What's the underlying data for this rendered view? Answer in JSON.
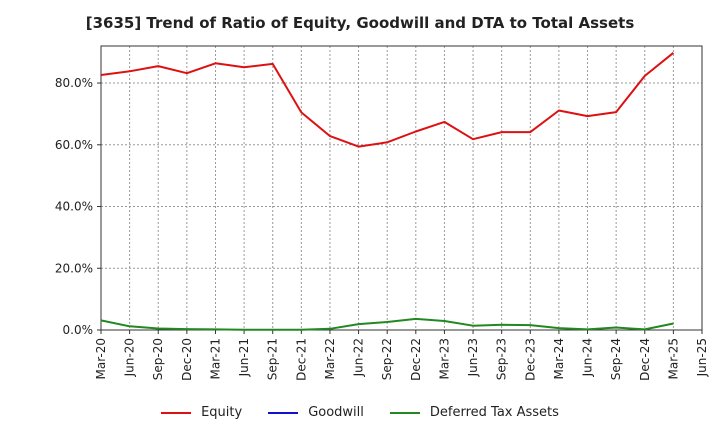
{
  "chart_data": {
    "type": "line",
    "title": "[3635]  Trend of Ratio of Equity, Goodwill and DTA to Total Assets",
    "xlabel": "",
    "ylabel": "",
    "ylim": [
      0,
      92
    ],
    "yticks": [
      0,
      20,
      40,
      60,
      80
    ],
    "ytick_labels": [
      "0.0%",
      "20.0%",
      "40.0%",
      "60.0%",
      "80.0%"
    ],
    "x_tick_labels": [
      "Mar-20",
      "Jun-20",
      "Sep-20",
      "Dec-20",
      "Mar-21",
      "Jun-21",
      "Sep-21",
      "Dec-21",
      "Mar-22",
      "Jun-22",
      "Sep-22",
      "Dec-22",
      "Mar-23",
      "Jun-23",
      "Sep-23",
      "Dec-23",
      "Mar-24",
      "Jun-24",
      "Sep-24",
      "Dec-24",
      "Mar-25",
      "Jun-25"
    ],
    "x": [
      "Mar-20",
      "Jun-20",
      "Sep-20",
      "Dec-20",
      "Mar-21",
      "Jun-21",
      "Sep-21",
      "Dec-21",
      "Mar-22",
      "Jun-22",
      "Sep-22",
      "Dec-22",
      "Mar-23",
      "Jun-23",
      "Sep-23",
      "Dec-23",
      "Mar-24",
      "Jun-24",
      "Sep-24",
      "Dec-24",
      "Mar-25"
    ],
    "grid": true,
    "legend_position": "bottom",
    "series": [
      {
        "name": "Equity",
        "color": "#dd1111",
        "values": [
          82.6,
          83.8,
          85.5,
          83.2,
          86.4,
          85.1,
          86.2,
          70.5,
          62.8,
          59.4,
          60.8,
          64.3,
          67.4,
          61.8,
          64.1,
          64.1,
          71.1,
          69.3,
          70.6,
          82.3,
          89.8
        ]
      },
      {
        "name": "Goodwill",
        "color": "#1111cc",
        "values": [
          null,
          null,
          null,
          null,
          null,
          null,
          null,
          null,
          null,
          null,
          null,
          null,
          null,
          null,
          null,
          null,
          null,
          null,
          null,
          null,
          null
        ]
      },
      {
        "name": "Deferred Tax Assets",
        "color": "#228822",
        "values": [
          3.1,
          1.2,
          0.5,
          0.3,
          0.2,
          0.1,
          0.1,
          0.1,
          0.4,
          1.9,
          2.6,
          3.6,
          2.9,
          1.4,
          1.7,
          1.6,
          0.6,
          0.2,
          0.8,
          0.2,
          2.1
        ]
      }
    ]
  }
}
